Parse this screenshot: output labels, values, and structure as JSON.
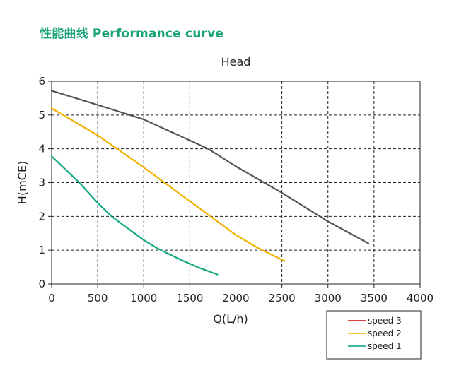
{
  "header": {
    "title": "性能曲线 Performance curve",
    "color": "#1aa37a"
  },
  "chart_data": {
    "type": "line",
    "title": "Head",
    "xlabel": "Q(L/h)",
    "ylabel": "H(mCE)",
    "xlim": [
      0,
      4000
    ],
    "ylim": [
      0,
      6
    ],
    "xticks": [
      0,
      500,
      1000,
      1500,
      2000,
      2500,
      3000,
      3500,
      4000
    ],
    "yticks": [
      0,
      1,
      2,
      3,
      4,
      5,
      6
    ],
    "grid": true,
    "grid_style": "dashed",
    "legend_position": "bottom-right",
    "legend": [
      {
        "name": "speed 3",
        "color": "#cc0000"
      },
      {
        "name": "speed 2",
        "color": "#f0b000"
      },
      {
        "name": "speed 1",
        "color": "#00a080"
      }
    ],
    "series": [
      {
        "name": "speed 3",
        "color": "#555555",
        "x": [
          0,
          500,
          1000,
          1500,
          1700,
          2000,
          2500,
          3000,
          3440
        ],
        "y": [
          5.72,
          5.3,
          4.87,
          4.25,
          4.0,
          3.48,
          2.7,
          1.85,
          1.2
        ]
      },
      {
        "name": "speed 2",
        "color": "#f0b000",
        "x": [
          0,
          500,
          1000,
          1500,
          2000,
          2250,
          2530
        ],
        "y": [
          5.2,
          4.4,
          3.45,
          2.45,
          1.45,
          1.05,
          0.68
        ]
      },
      {
        "name": "speed 1",
        "color": "#13a882",
        "x": [
          0,
          300,
          500,
          650,
          800,
          1000,
          1150,
          1400,
          1600,
          1800
        ],
        "y": [
          3.78,
          3.0,
          2.4,
          2.0,
          1.7,
          1.3,
          1.05,
          0.72,
          0.48,
          0.28
        ]
      }
    ]
  }
}
